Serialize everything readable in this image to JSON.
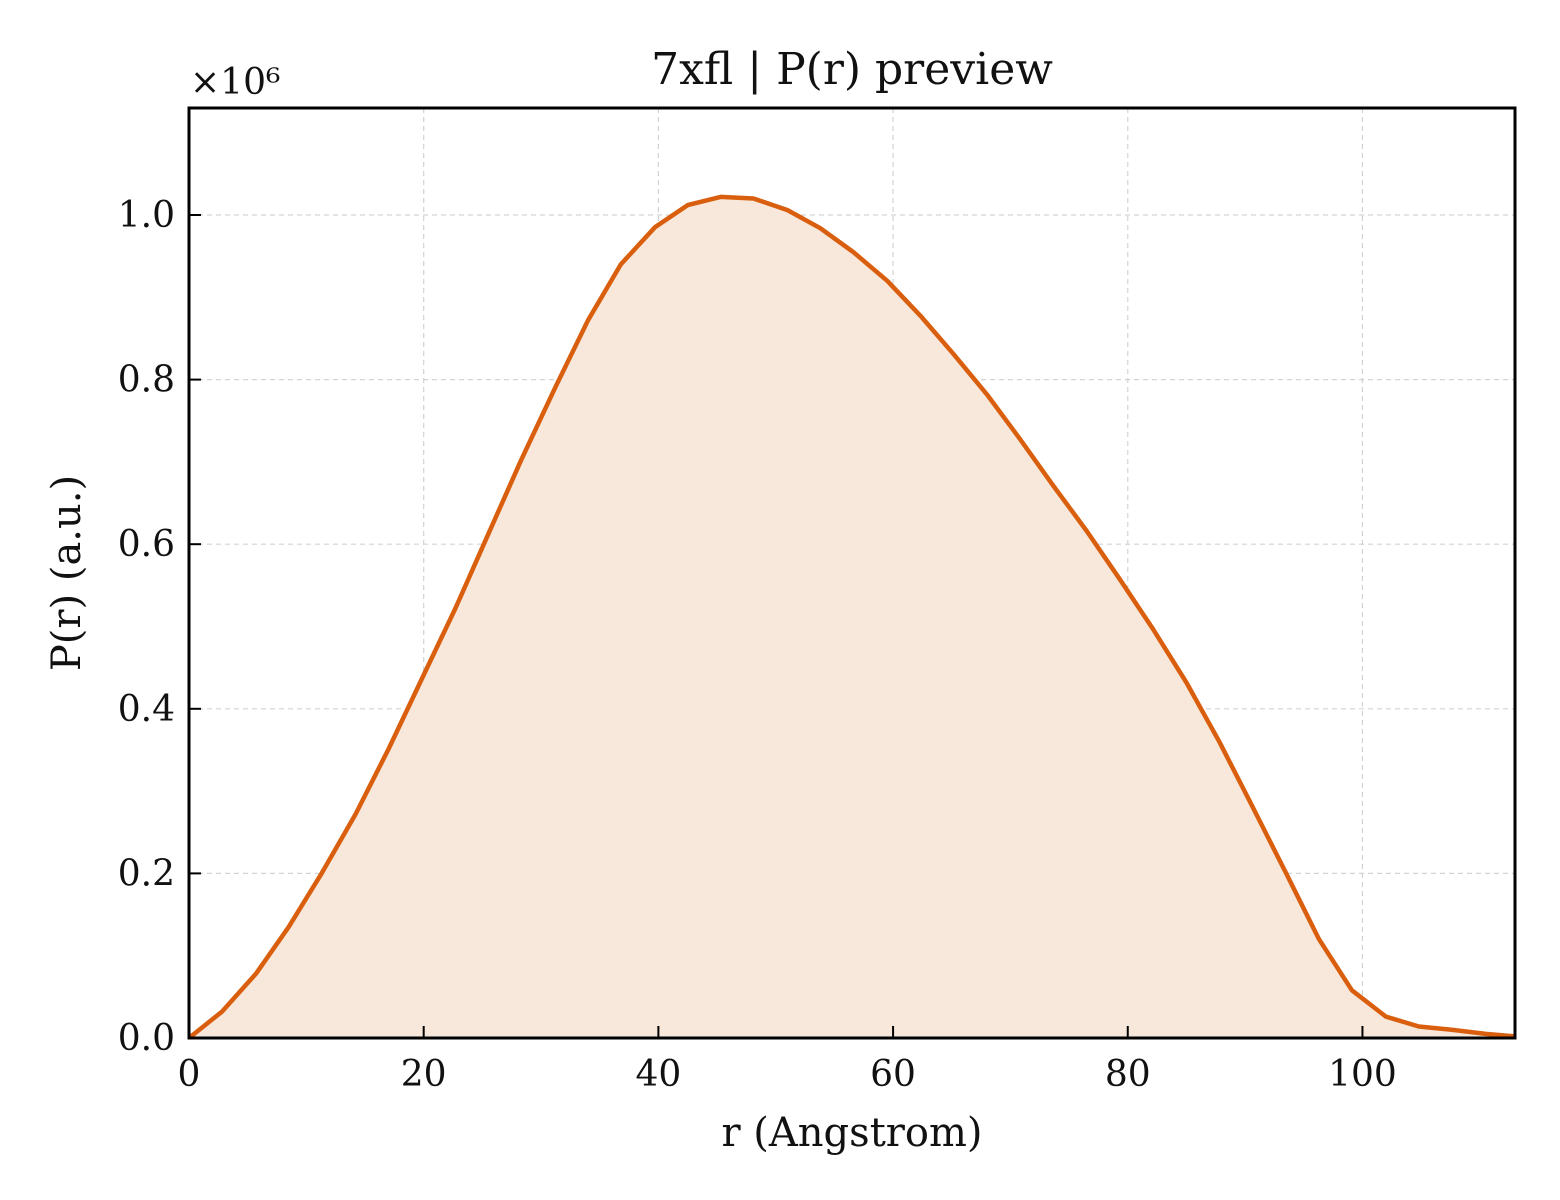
{
  "chart_data": {
    "type": "area",
    "title": "7xfl | P(r) preview",
    "xlabel": "r (Angstrom)",
    "ylabel": "P(r) (a.u.)",
    "y_multiplier_label": "×10⁶",
    "y_scale_factor": 1000000,
    "xlim": [
      0,
      113
    ],
    "ylim": [
      0,
      1.13
    ],
    "x_ticks": [
      0,
      20,
      40,
      60,
      80,
      100
    ],
    "x_tick_labels": [
      "0",
      "20",
      "40",
      "60",
      "80",
      "100"
    ],
    "y_ticks": [
      0.0,
      0.2,
      0.4,
      0.6,
      0.8,
      1.0
    ],
    "y_tick_labels": [
      "0.0",
      "0.2",
      "0.4",
      "0.6",
      "0.8",
      "1.0"
    ],
    "grid": true,
    "colors": {
      "line": "#d95f0e",
      "fill": "#f8e8dc"
    },
    "series": [
      {
        "x": [
          0,
          2.8,
          5.7,
          8.5,
          11.3,
          14.2,
          17.0,
          19.8,
          22.7,
          25.5,
          28.3,
          31.2,
          34.0,
          36.8,
          39.7,
          42.5,
          45.3,
          48.1,
          51.0,
          53.8,
          56.6,
          59.5,
          62.3,
          65.1,
          68.0,
          70.8,
          73.6,
          76.5,
          79.3,
          82.1,
          85.0,
          87.8,
          90.6,
          93.5,
          96.3,
          99.1,
          102.0,
          104.8,
          107.6,
          110.5,
          113.0
        ],
        "y": [
          0.0,
          0.032,
          0.078,
          0.135,
          0.2,
          0.272,
          0.351,
          0.435,
          0.522,
          0.612,
          0.702,
          0.79,
          0.872,
          0.94,
          0.985,
          1.012,
          1.022,
          1.02,
          1.006,
          0.984,
          0.955,
          0.92,
          0.878,
          0.832,
          0.782,
          0.728,
          0.672,
          0.616,
          0.558,
          0.498,
          0.432,
          0.36,
          0.282,
          0.2,
          0.12,
          0.058,
          0.026,
          0.014,
          0.01,
          0.005,
          0.002
        ]
      }
    ]
  }
}
